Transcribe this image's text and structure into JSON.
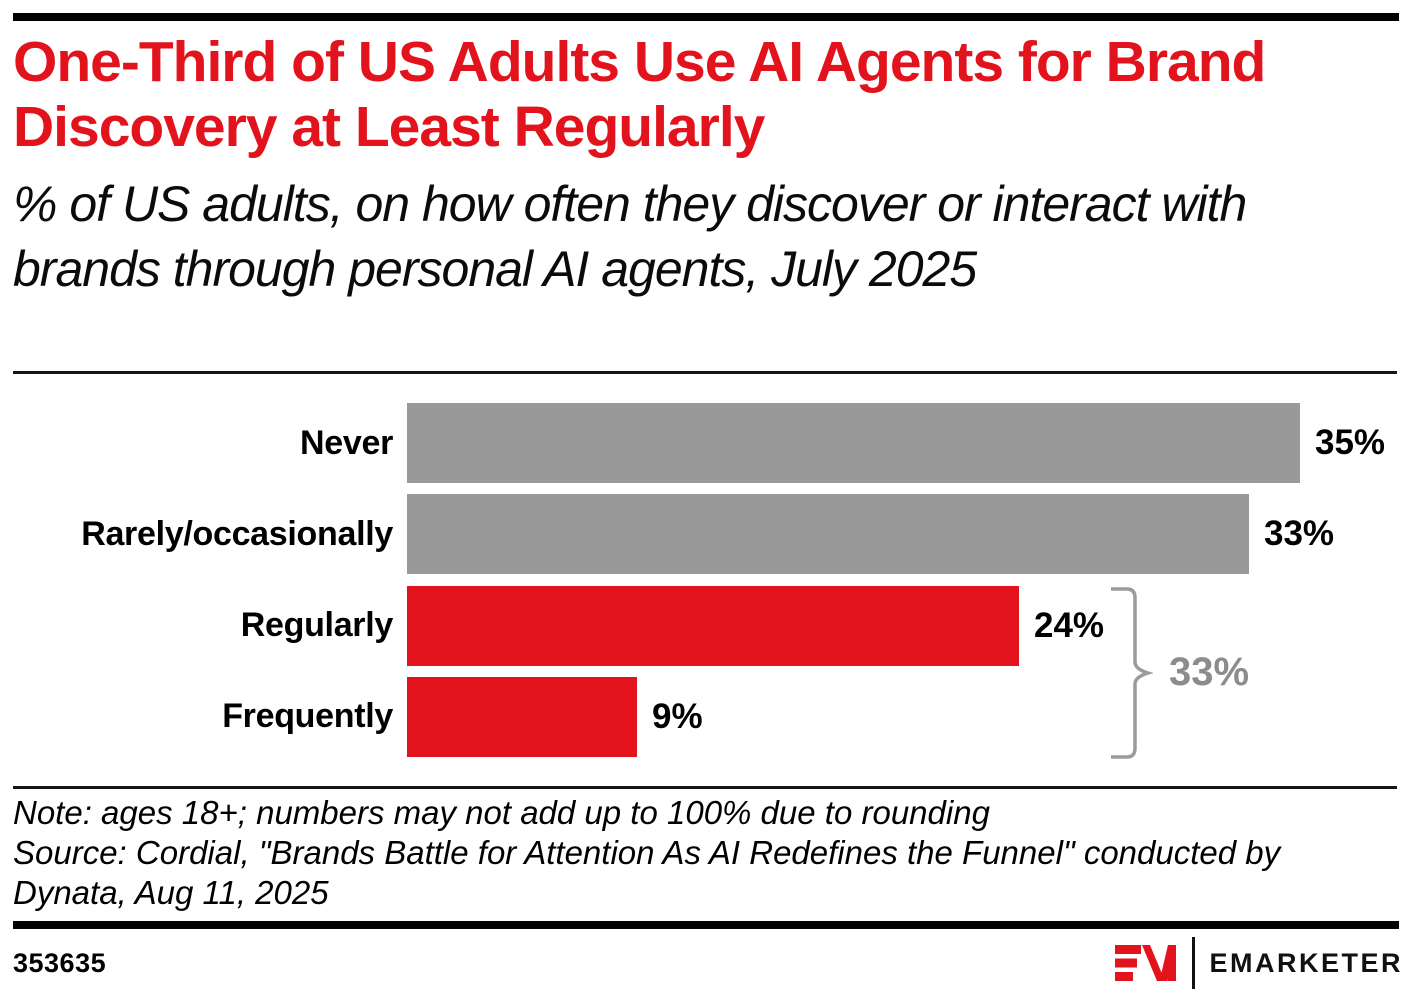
{
  "header": {
    "title": "One-Third of US Adults Use AI Agents for Brand Discovery at Least Regularly",
    "subtitle": "% of US adults, on how often they discover or interact with brands through personal AI agents, July 2025"
  },
  "chart_data": {
    "type": "bar",
    "orientation": "horizontal",
    "categories": [
      "Never",
      "Rarely/occasionally",
      "Regularly",
      "Frequently"
    ],
    "values": [
      35,
      33,
      24,
      9
    ],
    "value_labels": [
      "35%",
      "33%",
      "24%",
      "9%"
    ],
    "bar_colors": [
      "#999999",
      "#999999",
      "#e2131c",
      "#e2131c"
    ],
    "xlim": [
      0,
      35
    ],
    "grid": "off",
    "legend": "none",
    "annotation": {
      "label": "33%",
      "applies_to": [
        "Regularly",
        "Frequently"
      ],
      "meaning": "Regularly + Frequently combined",
      "color": "#8c8c8c"
    }
  },
  "footnotes": {
    "note": "Note: ages 18+; numbers may not add up to 100% due to rounding",
    "source": "Source: Cordial, \"Brands Battle for Attention As AI Redefines the Funnel\" conducted by Dynata, Aug 11, 2025"
  },
  "footer": {
    "chart_id": "353635",
    "brand": "EMARKETER"
  },
  "colors": {
    "accent_red": "#e2131c",
    "bar_gray": "#999999",
    "annotation_gray": "#8c8c8c",
    "brace_gray": "#9b9b9b",
    "rule_black": "#000000"
  }
}
